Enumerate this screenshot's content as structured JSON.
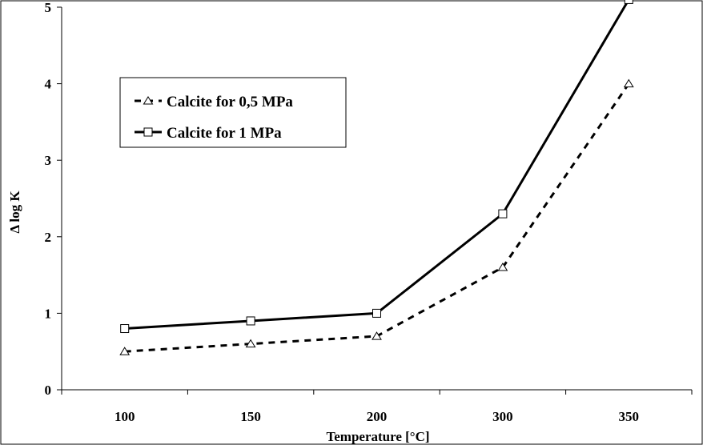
{
  "chart_data": {
    "type": "line",
    "title": "",
    "xlabel": "Temperature [°C]",
    "ylabel": "Δ log K",
    "categories": [
      "100",
      "150",
      "200",
      "300",
      "350"
    ],
    "ylim": [
      0,
      5
    ],
    "y_ticks": [
      "0",
      "1",
      "2",
      "3",
      "4",
      "5"
    ],
    "grid": false,
    "legend_position": "top-left",
    "series": [
      {
        "name": "Calcite for 0,5 MPa",
        "values": [
          0.5,
          0.6,
          0.7,
          1.6,
          4.0
        ],
        "line_style": "dashed",
        "marker": "triangle",
        "color": "#000000"
      },
      {
        "name": "Calcite for 1 MPa",
        "values": [
          0.8,
          0.9,
          1.0,
          2.3,
          5.1
        ],
        "line_style": "solid",
        "marker": "square",
        "color": "#000000"
      }
    ]
  }
}
